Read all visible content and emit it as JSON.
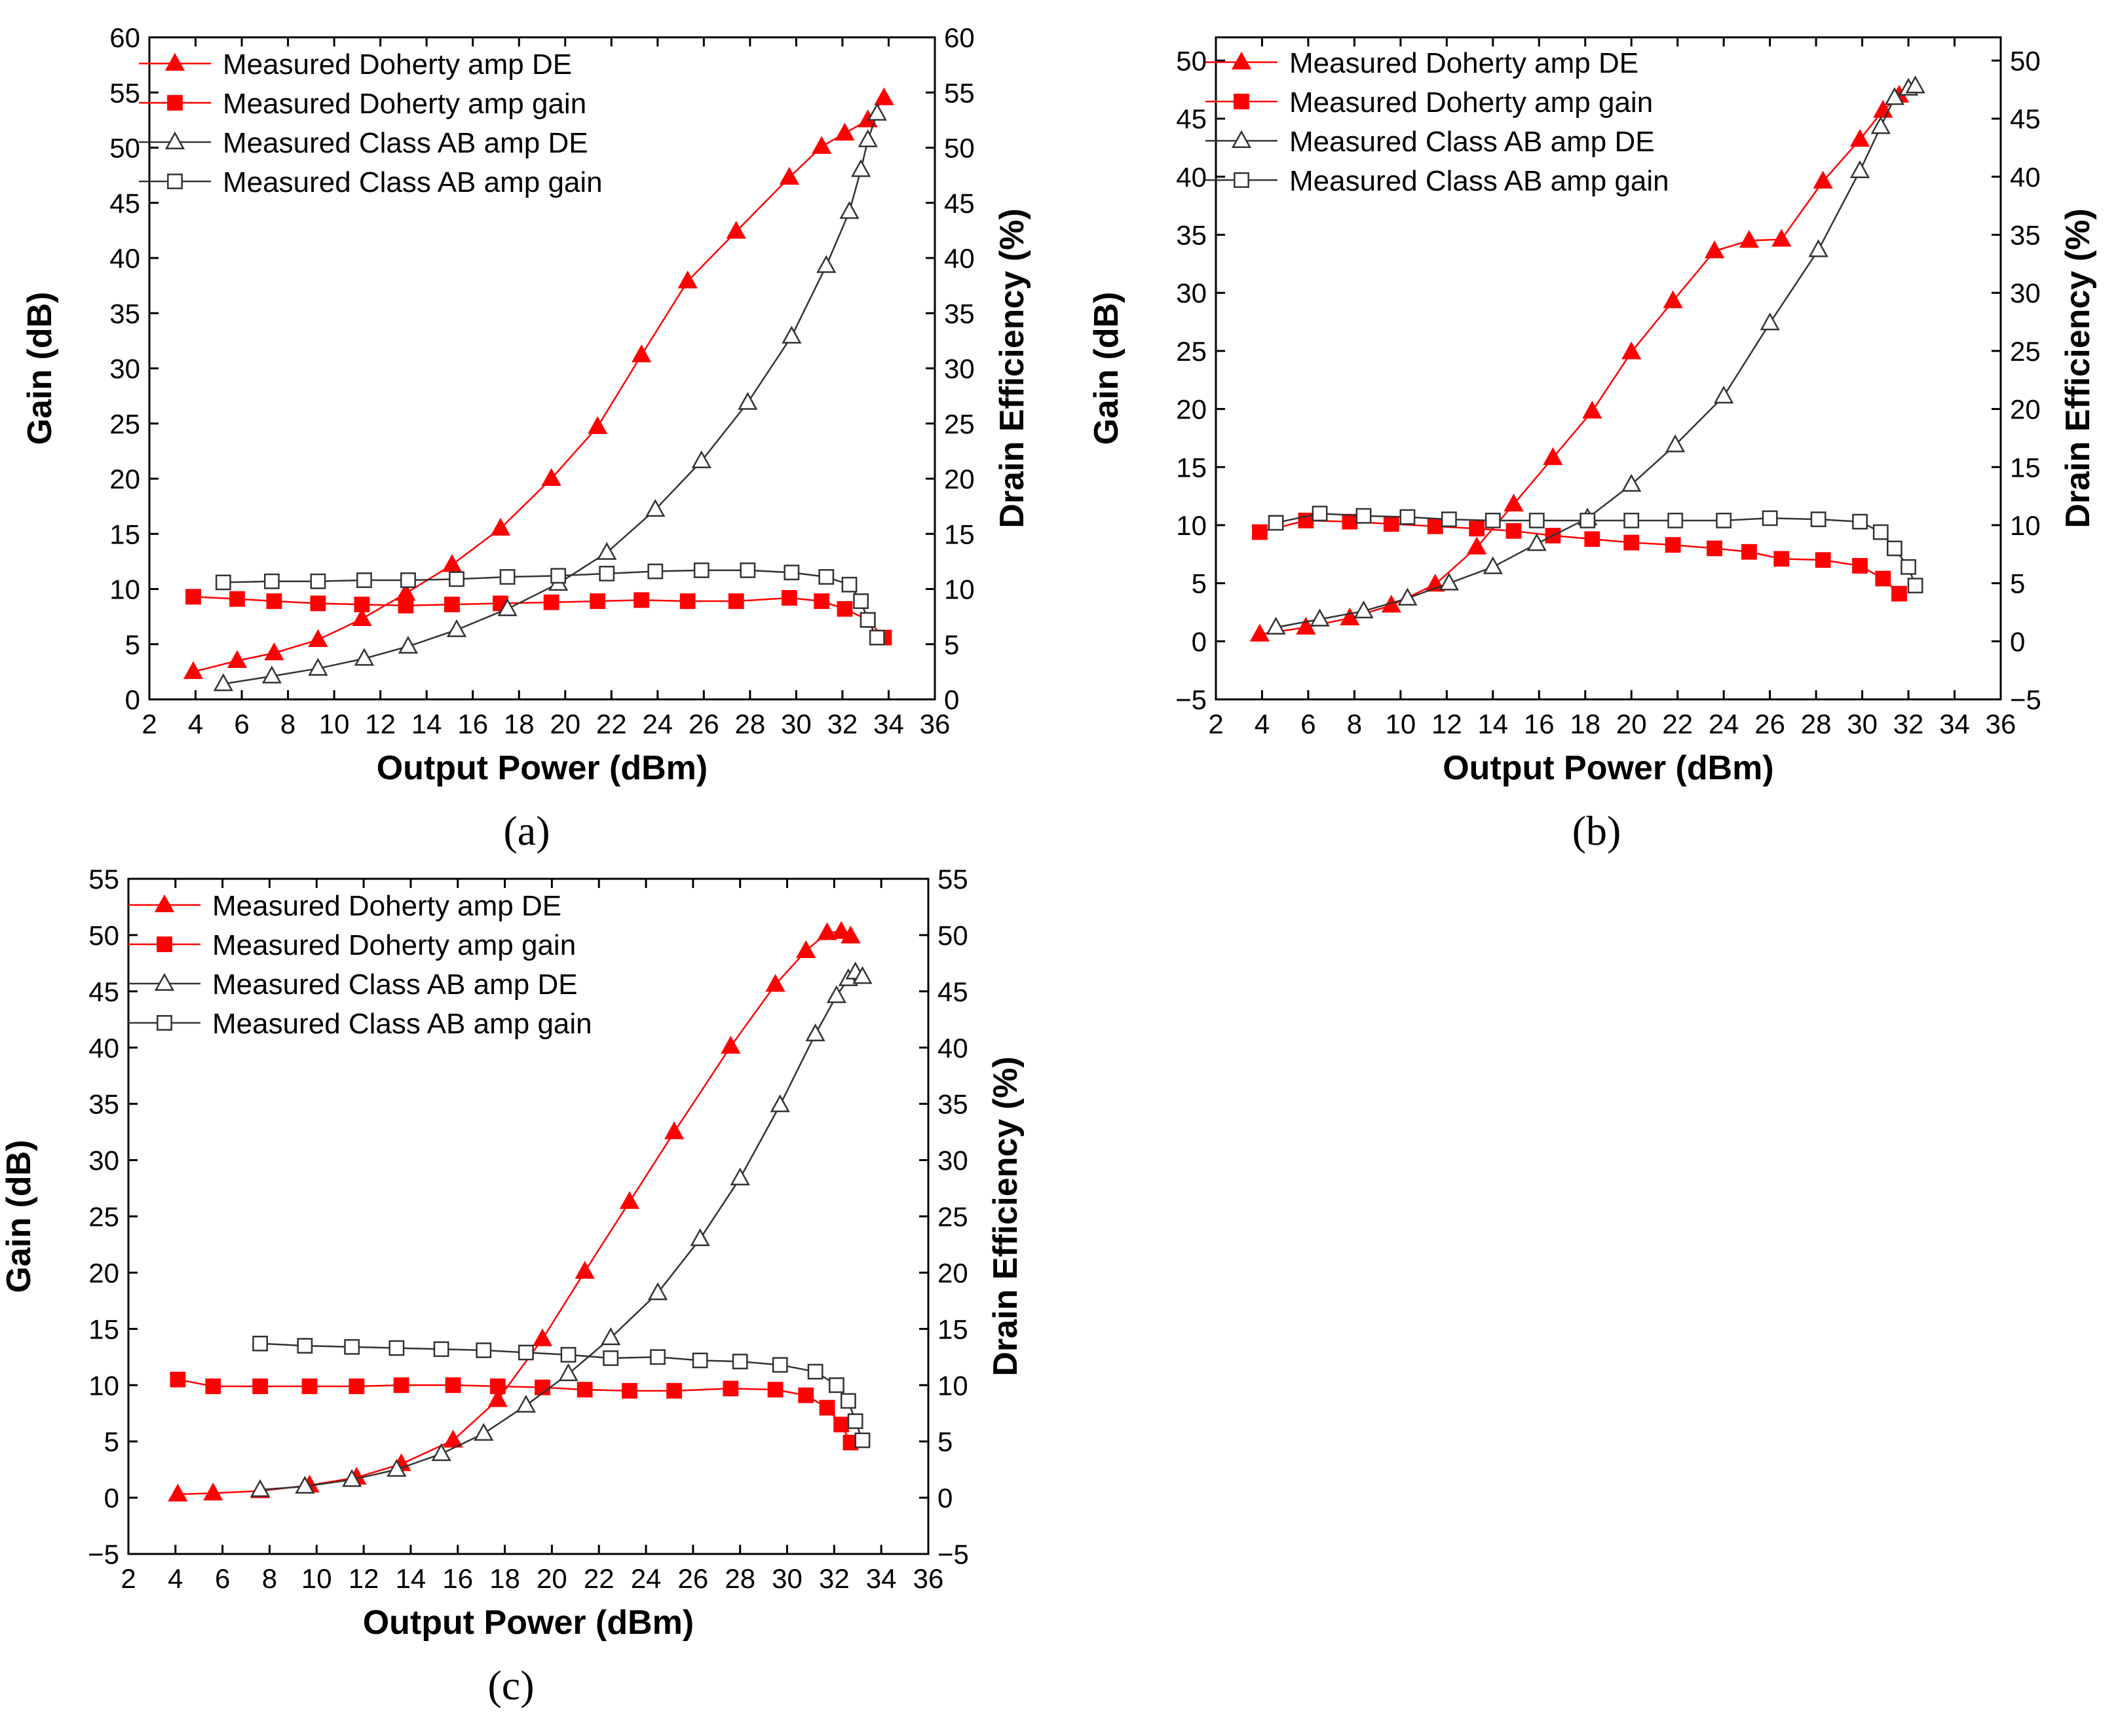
{
  "chart_data": [
    {
      "type": "line",
      "caption": "(a)",
      "xlabel": "Output Power (dBm)",
      "ylabel": "Gain (dB)",
      "y2label": "Drain Efficiency (%)",
      "xlim": [
        2,
        36
      ],
      "ylim": [
        0,
        60
      ],
      "xticks": [
        "2",
        "4",
        "6",
        "8",
        "10",
        "12",
        "14",
        "16",
        "18",
        "20",
        "22",
        "24",
        "26",
        "28",
        "30",
        "32",
        "34",
        "36"
      ],
      "yticks": [
        "0",
        "5",
        "10",
        "15",
        "20",
        "25",
        "30",
        "35",
        "40",
        "45",
        "50",
        "55",
        "60"
      ],
      "y2ticks": [
        "0",
        "5",
        "10",
        "15",
        "20",
        "25",
        "30",
        "35",
        "40",
        "45",
        "50",
        "55",
        "60"
      ],
      "legend_position": "top-left",
      "series": [
        {
          "name": "Measured Doherty amp DE",
          "axis": "right",
          "color": "#ff0000",
          "marker": "triangle-filled",
          "x": [
            3.9,
            5.8,
            7.4,
            9.3,
            11.2,
            13.1,
            15.1,
            17.2,
            19.4,
            21.4,
            23.3,
            25.3,
            27.4,
            29.7,
            31.1,
            32.1,
            33.1,
            33.8
          ],
          "y": [
            2.5,
            3.5,
            4.2,
            5.4,
            7.3,
            9.6,
            12.2,
            15.5,
            20.0,
            24.7,
            31.2,
            37.9,
            42.4,
            47.3,
            50.1,
            51.3,
            52.5,
            54.5
          ]
        },
        {
          "name": "Measured Doherty amp gain",
          "axis": "left",
          "color": "#ff0000",
          "marker": "square-filled",
          "x": [
            3.9,
            5.8,
            7.4,
            9.3,
            11.2,
            13.1,
            15.1,
            17.2,
            19.4,
            21.4,
            23.3,
            25.3,
            27.4,
            29.7,
            31.1,
            32.1,
            33.1,
            33.8
          ],
          "y": [
            9.3,
            9.1,
            8.9,
            8.7,
            8.6,
            8.5,
            8.6,
            8.7,
            8.8,
            8.9,
            9.0,
            8.9,
            8.9,
            9.2,
            8.9,
            8.2,
            7.2,
            5.6
          ]
        },
        {
          "name": "Measured Class AB amp DE",
          "axis": "right",
          "color": "#333333",
          "marker": "triangle-open",
          "x": [
            5.2,
            7.3,
            9.3,
            11.3,
            13.2,
            15.3,
            17.5,
            19.7,
            21.8,
            23.9,
            25.9,
            27.9,
            29.8,
            31.3,
            32.3,
            32.8,
            33.1,
            33.5
          ],
          "y": [
            1.4,
            2.1,
            2.8,
            3.7,
            4.8,
            6.3,
            8.2,
            10.5,
            13.3,
            17.2,
            21.6,
            26.9,
            32.9,
            39.3,
            44.2,
            48.0,
            50.7,
            53.1
          ]
        },
        {
          "name": "Measured Class AB amp gain",
          "axis": "left",
          "color": "#333333",
          "marker": "square-open",
          "x": [
            5.2,
            7.3,
            9.3,
            11.3,
            13.2,
            15.3,
            17.5,
            19.7,
            21.8,
            23.9,
            25.9,
            27.9,
            29.8,
            31.3,
            32.3,
            32.8,
            33.1,
            33.5
          ],
          "y": [
            10.6,
            10.7,
            10.7,
            10.8,
            10.8,
            10.9,
            11.1,
            11.2,
            11.4,
            11.6,
            11.7,
            11.7,
            11.5,
            11.1,
            10.4,
            8.9,
            7.2,
            5.6
          ]
        }
      ]
    },
    {
      "type": "line",
      "caption": "(b)",
      "xlabel": "Output Power (dBm)",
      "ylabel": "Gain (dB)",
      "y2label": "Drain Efficiency (%)",
      "xlim": [
        2,
        36
      ],
      "ylim": [
        -5,
        52
      ],
      "xticks": [
        "2",
        "4",
        "6",
        "8",
        "10",
        "12",
        "14",
        "16",
        "18",
        "20",
        "22",
        "24",
        "26",
        "28",
        "30",
        "32",
        "34",
        "36"
      ],
      "yticks": [
        "-5",
        "0",
        "5",
        "10",
        "15",
        "20",
        "25",
        "30",
        "35",
        "40",
        "45",
        "50"
      ],
      "y2ticks": [
        "-5",
        "0",
        "5",
        "10",
        "15",
        "20",
        "25",
        "30",
        "35",
        "40",
        "45",
        "50"
      ],
      "legend_position": "top-left",
      "series": [
        {
          "name": "Measured Doherty amp DE",
          "axis": "right",
          "color": "#ff0000",
          "marker": "triangle-filled",
          "x": [
            3.9,
            5.9,
            7.8,
            9.6,
            11.5,
            13.3,
            14.9,
            16.6,
            18.3,
            20.0,
            21.8,
            23.6,
            25.1,
            26.5,
            28.3,
            29.9,
            30.9,
            31.6
          ],
          "y": [
            0.6,
            1.2,
            2.0,
            3.1,
            4.9,
            8.1,
            11.8,
            15.8,
            19.8,
            24.9,
            29.3,
            33.6,
            34.5,
            34.6,
            39.6,
            43.2,
            45.7,
            47.0
          ]
        },
        {
          "name": "Measured Doherty amp gain",
          "axis": "left",
          "color": "#ff0000",
          "marker": "square-filled",
          "x": [
            3.9,
            5.9,
            7.8,
            9.6,
            11.5,
            13.3,
            14.9,
            16.6,
            18.3,
            20.0,
            21.8,
            23.6,
            25.1,
            26.5,
            28.3,
            29.9,
            30.9,
            31.6
          ],
          "y": [
            9.4,
            10.4,
            10.3,
            10.1,
            9.9,
            9.7,
            9.5,
            9.1,
            8.8,
            8.5,
            8.3,
            8.0,
            7.7,
            7.1,
            7.0,
            6.5,
            5.4,
            4.1
          ]
        },
        {
          "name": "Measured Class AB amp DE",
          "axis": "right",
          "color": "#333333",
          "marker": "triangle-open",
          "x": [
            4.6,
            6.5,
            8.4,
            10.3,
            12.1,
            14.0,
            15.9,
            18.1,
            20.0,
            21.9,
            24.0,
            26.0,
            28.1,
            29.9,
            30.8,
            31.4,
            32.0,
            32.3
          ],
          "y": [
            1.2,
            1.9,
            2.6,
            3.7,
            5.0,
            6.4,
            8.4,
            10.6,
            13.5,
            16.9,
            21.1,
            27.4,
            33.7,
            40.5,
            44.3,
            46.8,
            47.6,
            47.8
          ]
        },
        {
          "name": "Measured Class AB amp gain",
          "axis": "left",
          "color": "#333333",
          "marker": "square-open",
          "x": [
            4.6,
            6.5,
            8.4,
            10.3,
            12.1,
            14.0,
            15.9,
            18.1,
            20.0,
            21.9,
            24.0,
            26.0,
            28.1,
            29.9,
            30.8,
            31.4,
            32.0,
            32.3
          ],
          "y": [
            10.2,
            11.0,
            10.8,
            10.7,
            10.5,
            10.4,
            10.4,
            10.4,
            10.4,
            10.4,
            10.4,
            10.6,
            10.5,
            10.3,
            9.4,
            8.0,
            6.4,
            4.8
          ]
        }
      ]
    },
    {
      "type": "line",
      "caption": "(c)",
      "xlabel": "Output Power (dBm)",
      "ylabel": "Gain (dB)",
      "y2label": "Drain Efficiency (%)",
      "xlim": [
        2,
        36
      ],
      "ylim": [
        -5,
        55
      ],
      "xticks": [
        "2",
        "4",
        "6",
        "8",
        "10",
        "12",
        "14",
        "16",
        "18",
        "20",
        "22",
        "24",
        "26",
        "28",
        "30",
        "32",
        "34",
        "36"
      ],
      "yticks": [
        "-5",
        "0",
        "5",
        "10",
        "15",
        "20",
        "25",
        "30",
        "35",
        "40",
        "45",
        "50",
        "55"
      ],
      "y2ticks": [
        "-5",
        "0",
        "5",
        "10",
        "15",
        "20",
        "25",
        "30",
        "35",
        "40",
        "45",
        "50",
        "55"
      ],
      "legend_position": "top-left",
      "series": [
        {
          "name": "Measured Doherty amp DE",
          "axis": "right",
          "color": "#ff0000",
          "marker": "triangle-filled",
          "x": [
            4.1,
            5.6,
            7.6,
            9.7,
            11.7,
            13.6,
            15.8,
            17.7,
            19.6,
            21.4,
            23.3,
            25.2,
            27.6,
            29.5,
            30.8,
            31.7,
            32.3,
            32.7
          ],
          "y": [
            0.3,
            0.4,
            0.6,
            1.1,
            1.8,
            3.0,
            5.1,
            8.7,
            14.1,
            20.1,
            26.3,
            32.5,
            40.1,
            45.6,
            48.6,
            50.2,
            50.3,
            49.9
          ]
        },
        {
          "name": "Measured Doherty amp gain",
          "axis": "left",
          "color": "#ff0000",
          "marker": "square-filled",
          "x": [
            4.1,
            5.6,
            7.6,
            9.7,
            11.7,
            13.6,
            15.8,
            17.7,
            19.6,
            21.4,
            23.3,
            25.2,
            27.6,
            29.5,
            30.8,
            31.7,
            32.3,
            32.7
          ],
          "y": [
            10.5,
            9.9,
            9.9,
            9.9,
            9.9,
            10.0,
            10.0,
            9.9,
            9.8,
            9.6,
            9.5,
            9.5,
            9.7,
            9.6,
            9.1,
            8.0,
            6.5,
            4.9
          ]
        },
        {
          "name": "Measured Class AB amp DE",
          "axis": "right",
          "color": "#333333",
          "marker": "triangle-open",
          "x": [
            7.6,
            9.5,
            11.5,
            13.4,
            15.3,
            17.1,
            18.9,
            20.7,
            22.5,
            24.5,
            26.3,
            28.0,
            29.7,
            31.2,
            32.1,
            32.6,
            32.9,
            33.2
          ],
          "y": [
            0.7,
            1.0,
            1.6,
            2.5,
            3.9,
            5.7,
            8.2,
            11.0,
            14.2,
            18.2,
            23.0,
            28.4,
            34.9,
            41.2,
            44.6,
            46.1,
            46.7,
            46.3
          ]
        },
        {
          "name": "Measured Class AB amp gain",
          "axis": "left",
          "color": "#333333",
          "marker": "square-open",
          "x": [
            7.6,
            9.5,
            11.5,
            13.4,
            15.3,
            17.1,
            18.9,
            20.7,
            22.5,
            24.5,
            26.3,
            28.0,
            29.7,
            31.2,
            32.1,
            32.6,
            32.9,
            33.2
          ],
          "y": [
            13.7,
            13.5,
            13.4,
            13.3,
            13.2,
            13.1,
            12.9,
            12.7,
            12.4,
            12.5,
            12.2,
            12.1,
            11.8,
            11.2,
            10.0,
            8.6,
            6.8,
            5.1
          ]
        }
      ]
    }
  ]
}
